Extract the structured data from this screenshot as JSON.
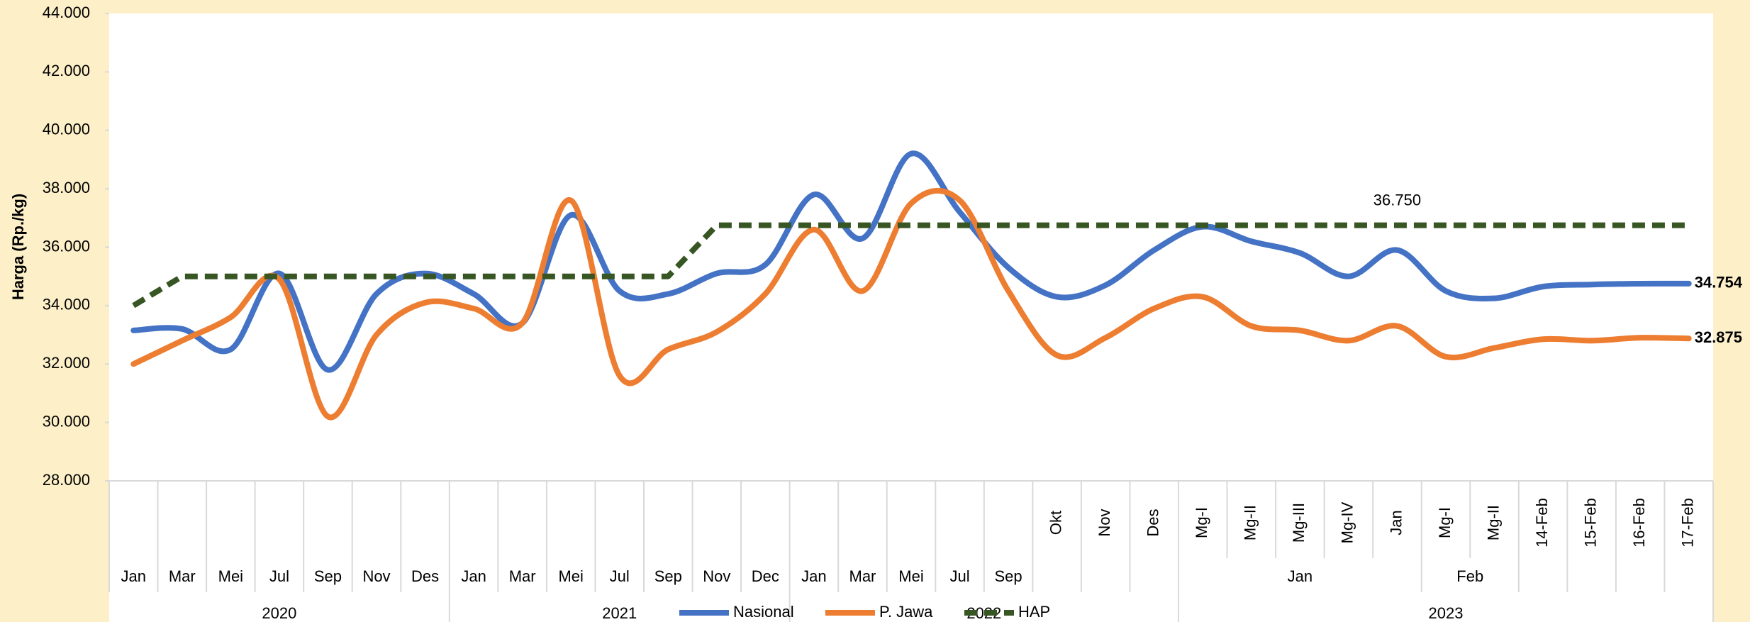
{
  "chart_data": {
    "type": "line",
    "y_label": "Harga (Rp./kg)",
    "categories": [
      "Jan",
      "Mar",
      "Mei",
      "Jul",
      "Sep",
      "Nov",
      "Des",
      "Jan",
      "Mar",
      "Mei",
      "Jul",
      "Sep",
      "Nov",
      "Dec",
      "Jan",
      "Mar",
      "Mei",
      "Jul",
      "Sep",
      "Okt",
      "Nov",
      "Des",
      "Mg-I",
      "Mg-II",
      "Mg-III",
      "Mg-IV",
      "Jan",
      "Mg-I",
      "Mg-II",
      "14-Feb",
      "15-Feb",
      "16-Feb",
      "17-Feb"
    ],
    "x_subgroups": [
      null,
      null,
      null,
      null,
      null,
      null,
      null,
      null,
      null,
      null,
      null,
      null,
      null,
      null,
      null,
      null,
      null,
      null,
      null,
      null,
      null,
      null,
      "Jan",
      "Jan",
      "Jan",
      "Jan",
      "Jan",
      "Feb",
      "Feb",
      null,
      null,
      null,
      null
    ],
    "x_groups": [
      "2020",
      "2020",
      "2020",
      "2020",
      "2020",
      "2020",
      "2020",
      "2021",
      "2021",
      "2021",
      "2021",
      "2021",
      "2021",
      "2021",
      "2022",
      "2022",
      "2022",
      "2022",
      "2022",
      "2022",
      "2022",
      "2022",
      "2023",
      "2023",
      "2023",
      "2023",
      "2023",
      "2023",
      "2023",
      "2023",
      "2023",
      "2023",
      "2023"
    ],
    "series": [
      {
        "name": "Nasional",
        "color": "#4472c4",
        "smooth": true,
        "values": [
          33150,
          33200,
          32500,
          35100,
          31800,
          34400,
          35100,
          34400,
          33400,
          37100,
          34500,
          34400,
          35100,
          35400,
          37800,
          36300,
          39200,
          37200,
          35300,
          34300,
          34700,
          35900,
          36700,
          36200,
          35800,
          35000,
          35900,
          34500,
          34250,
          34650,
          34720,
          34750,
          34754
        ],
        "value_labels": [
          null,
          null,
          null,
          null,
          null,
          null,
          null,
          null,
          null,
          null,
          null,
          null,
          null,
          null,
          null,
          null,
          null,
          null,
          null,
          null,
          null,
          null,
          null,
          null,
          null,
          null,
          null,
          null,
          null,
          null,
          null,
          null,
          "34.754"
        ]
      },
      {
        "name": "P. Jawa",
        "color": "#ed7d31",
        "smooth": true,
        "values": [
          32000,
          32800,
          33600,
          34900,
          30200,
          33000,
          34100,
          33900,
          33400,
          37600,
          31600,
          32500,
          33100,
          34400,
          36600,
          34500,
          37500,
          37600,
          34500,
          32300,
          32900,
          33900,
          34300,
          33300,
          33150,
          32800,
          33300,
          32250,
          32550,
          32850,
          32800,
          32900,
          32875
        ],
        "value_labels": [
          null,
          null,
          null,
          null,
          null,
          null,
          null,
          null,
          null,
          null,
          null,
          null,
          null,
          null,
          null,
          null,
          null,
          null,
          null,
          null,
          null,
          null,
          null,
          null,
          null,
          null,
          null,
          null,
          null,
          null,
          null,
          null,
          "32.875"
        ]
      },
      {
        "name": "HAP",
        "color": "#375623",
        "dashed": true,
        "values": [
          34000,
          35000,
          35000,
          35000,
          35000,
          35000,
          35000,
          35000,
          35000,
          35000,
          35000,
          35000,
          36750,
          36750,
          36750,
          36750,
          36750,
          36750,
          36750,
          36750,
          36750,
          36750,
          36750,
          36750,
          36750,
          36750,
          36750,
          36750,
          36750,
          36750,
          36750,
          36750,
          36750
        ],
        "value_labels": [
          null,
          null,
          null,
          null,
          null,
          null,
          null,
          null,
          null,
          null,
          null,
          null,
          null,
          null,
          null,
          null,
          null,
          null,
          null,
          null,
          null,
          null,
          null,
          null,
          null,
          null,
          "36.750",
          null,
          null,
          null,
          null,
          null,
          null
        ]
      }
    ],
    "ylim": [
      28000,
      44000
    ],
    "yticks": [
      {
        "value": 28000,
        "label": "28.000"
      },
      {
        "value": 30000,
        "label": "30.000"
      },
      {
        "value": 32000,
        "label": "32.000"
      },
      {
        "value": 34000,
        "label": "34.000"
      },
      {
        "value": 36000,
        "label": "36.000"
      },
      {
        "value": 38000,
        "label": "38.000"
      },
      {
        "value": 40000,
        "label": "40.000"
      },
      {
        "value": 42000,
        "label": "42.000"
      },
      {
        "value": 44000,
        "label": "44.000"
      }
    ],
    "legend": "bottom"
  }
}
